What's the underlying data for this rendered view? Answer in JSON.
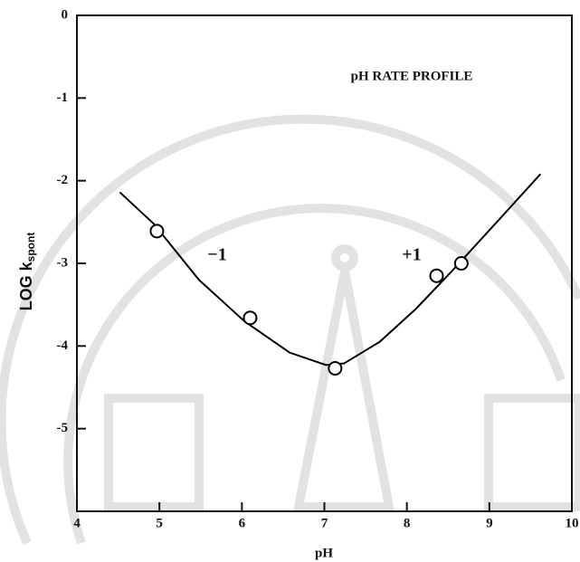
{
  "chart_data": {
    "type": "scatter",
    "annotations": [
      "pH  RATE  PROFILE",
      "−1",
      "+1"
    ],
    "xlabel": "pH",
    "ylabel": "LOG k",
    "ylabel_sub": "spont",
    "xlim": [
      4,
      10
    ],
    "xticks": [
      4,
      5,
      6,
      7,
      8,
      9,
      10
    ],
    "ylim": [
      -6,
      0
    ],
    "yticks": [
      0,
      -1,
      -2,
      -3,
      -4,
      -5
    ],
    "color": "#000000",
    "points": {
      "x": [
        4.97,
        6.1,
        7.13,
        8.36,
        8.66
      ],
      "values": [
        -2.61,
        -3.66,
        -4.27,
        -3.15,
        -3.0
      ]
    },
    "curve": {
      "x": [
        4.52,
        4.93,
        5.48,
        6.03,
        6.58,
        7.02,
        7.24,
        7.67,
        8.11,
        8.55,
        9.1,
        9.62
      ],
      "values": [
        -2.14,
        -2.52,
        -3.2,
        -3.7,
        -4.08,
        -4.23,
        -4.21,
        -3.95,
        -3.55,
        -3.09,
        -2.49,
        -1.92
      ]
    }
  }
}
